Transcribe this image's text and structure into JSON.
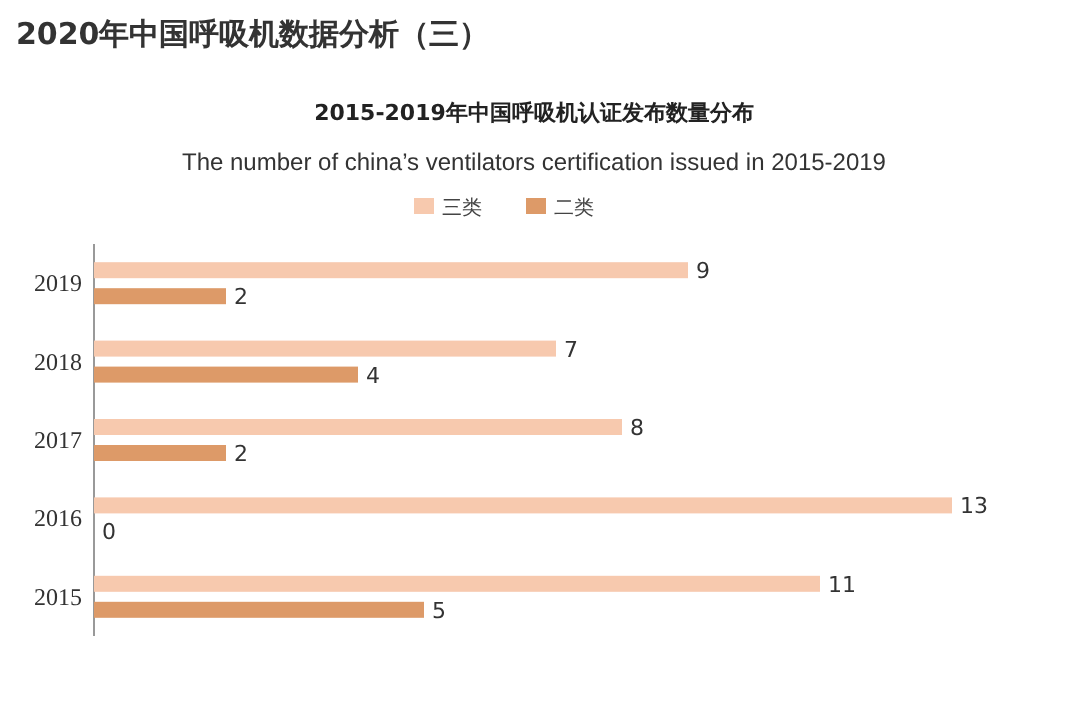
{
  "chart_data": {
    "type": "bar",
    "orientation": "horizontal",
    "title": "2015-2019年中国呼吸机认证发布数量分布",
    "subtitle": "The number of china’s ventilators certification issued in 2015-2019",
    "annotations": [
      "2020年中国呼吸机数据分析（三）"
    ],
    "categories": [
      "2019",
      "2018",
      "2017",
      "2016",
      "2015"
    ],
    "series": [
      {
        "name": "三类",
        "color": "#f7c9ae",
        "values": [
          9,
          7,
          8,
          13,
          11
        ]
      },
      {
        "name": "二类",
        "color": "#dd9a68",
        "values": [
          2,
          4,
          2,
          0,
          5
        ]
      }
    ],
    "data_labels": true,
    "legend": "top",
    "grid": false
  }
}
